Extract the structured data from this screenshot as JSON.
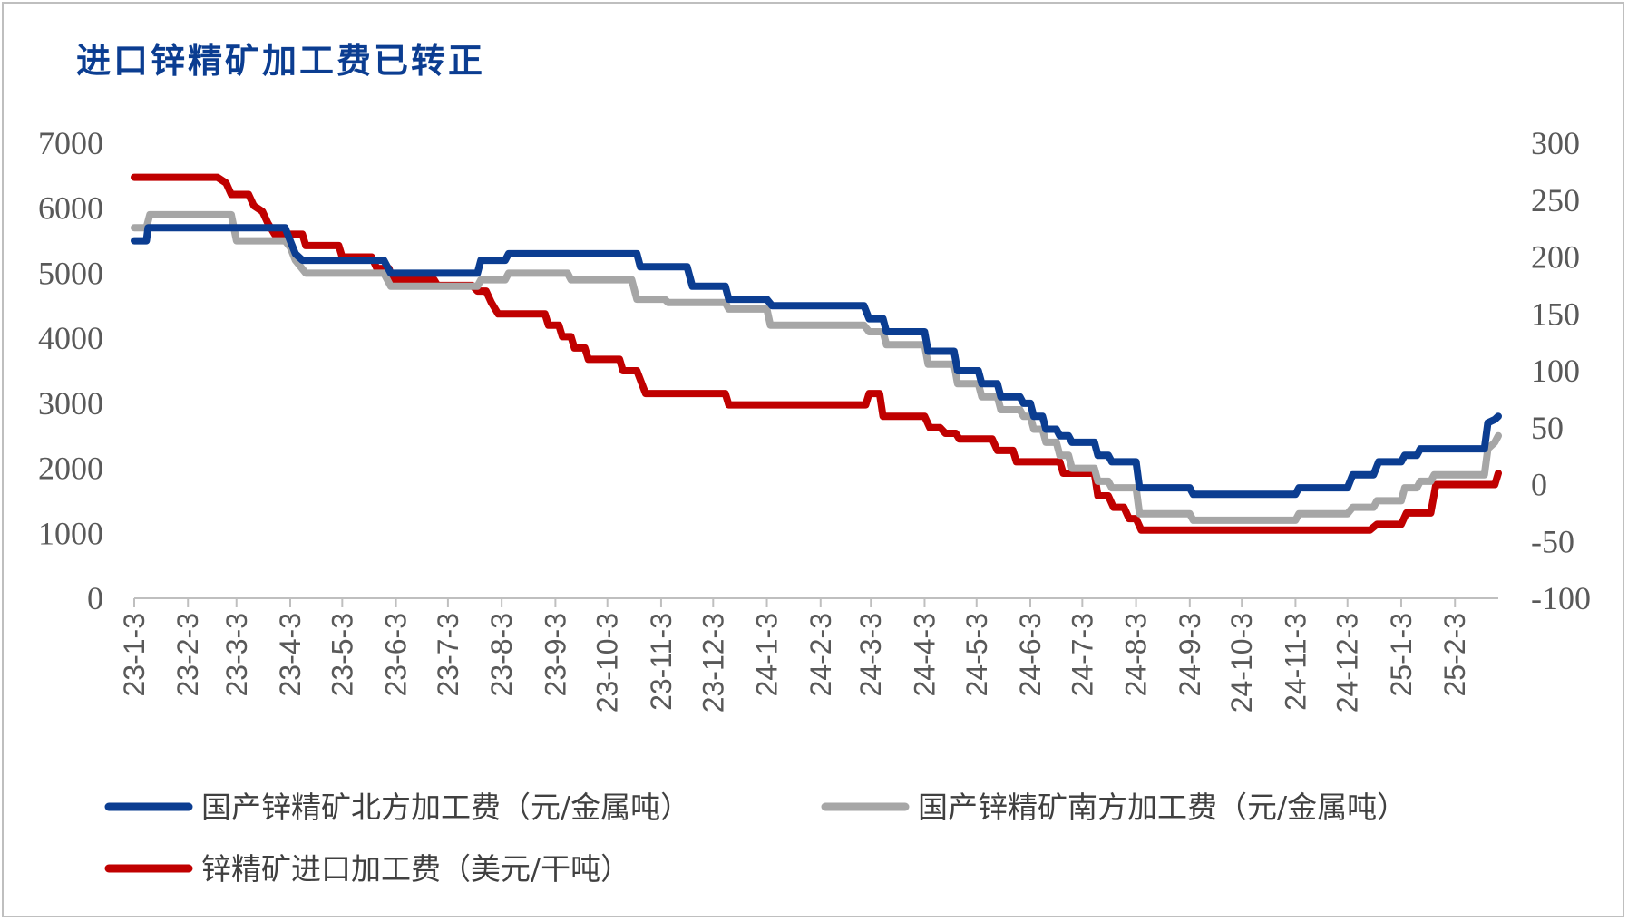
{
  "chart_data": {
    "type": "line",
    "title": "进口锌精矿加工费已转正",
    "y_left_ticks": [
      "7000",
      "6000",
      "5000",
      "4000",
      "3000",
      "2000",
      "1000",
      "0"
    ],
    "y_right_ticks": [
      "300",
      "250",
      "200",
      "150",
      "100",
      "50",
      "0",
      "-50",
      "-100"
    ],
    "y_left_range": [
      0,
      7000
    ],
    "y_right_range": [
      -100,
      300
    ],
    "x_ticks": [
      "23-1-3",
      "23-2-3",
      "23-3-3",
      "23-4-3",
      "23-5-3",
      "23-6-3",
      "23-7-3",
      "23-8-3",
      "23-9-3",
      "23-10-3",
      "23-11-3",
      "23-12-3",
      "24-1-3",
      "24-2-3",
      "24-3-3",
      "24-4-3",
      "24-5-3",
      "24-6-3",
      "24-7-3",
      "24-8-3",
      "24-9-3",
      "24-10-3",
      "24-11-3",
      "24-12-3",
      "25-1-3",
      "25-2-3"
    ],
    "x_range": [
      "2023-01-03",
      "2025-02-28"
    ],
    "series": [
      {
        "name": "国产锌精矿北方加工费（元/金属吨）",
        "axis": "left",
        "color": "#0b3d91",
        "points": [
          [
            "2023-01-03",
            5500
          ],
          [
            "2023-01-10",
            5500
          ],
          [
            "2023-01-11",
            5700
          ],
          [
            "2023-03-25",
            5700
          ],
          [
            "2023-03-31",
            5700
          ],
          [
            "2023-04-03",
            5500
          ],
          [
            "2023-04-06",
            5300
          ],
          [
            "2023-04-10",
            5200
          ],
          [
            "2023-05-27",
            5200
          ],
          [
            "2023-05-31",
            5000
          ],
          [
            "2023-07-20",
            5000
          ],
          [
            "2023-07-22",
            5200
          ],
          [
            "2023-08-05",
            5200
          ],
          [
            "2023-08-07",
            5300
          ],
          [
            "2023-10-20",
            5300
          ],
          [
            "2023-10-22",
            5100
          ],
          [
            "2023-11-18",
            5100
          ],
          [
            "2023-11-21",
            4800
          ],
          [
            "2023-12-10",
            4800
          ],
          [
            "2023-12-12",
            4600
          ],
          [
            "2024-01-03",
            4600
          ],
          [
            "2024-01-06",
            4500
          ],
          [
            "2024-02-28",
            4500
          ],
          [
            "2024-03-02",
            4300
          ],
          [
            "2024-03-10",
            4300
          ],
          [
            "2024-03-12",
            4100
          ],
          [
            "2024-04-03",
            4100
          ],
          [
            "2024-04-05",
            3800
          ],
          [
            "2024-04-20",
            3800
          ],
          [
            "2024-04-22",
            3500
          ],
          [
            "2024-05-04",
            3500
          ],
          [
            "2024-05-06",
            3300
          ],
          [
            "2024-05-15",
            3300
          ],
          [
            "2024-05-17",
            3100
          ],
          [
            "2024-05-28",
            3100
          ],
          [
            "2024-05-30",
            3000
          ],
          [
            "2024-06-03",
            3000
          ],
          [
            "2024-06-05",
            2800
          ],
          [
            "2024-06-10",
            2800
          ],
          [
            "2024-06-12",
            2600
          ],
          [
            "2024-06-18",
            2600
          ],
          [
            "2024-06-20",
            2500
          ],
          [
            "2024-06-25",
            2500
          ],
          [
            "2024-06-27",
            2400
          ],
          [
            "2024-07-10",
            2400
          ],
          [
            "2024-07-12",
            2200
          ],
          [
            "2024-07-18",
            2200
          ],
          [
            "2024-07-20",
            2100
          ],
          [
            "2024-08-03",
            2100
          ],
          [
            "2024-08-05",
            1700
          ],
          [
            "2024-09-03",
            1700
          ],
          [
            "2024-09-05",
            1600
          ],
          [
            "2024-11-03",
            1600
          ],
          [
            "2024-11-05",
            1700
          ],
          [
            "2024-12-03",
            1700
          ],
          [
            "2024-12-06",
            1900
          ],
          [
            "2024-12-18",
            1900
          ],
          [
            "2024-12-21",
            2100
          ],
          [
            "2025-01-03",
            2100
          ],
          [
            "2025-01-05",
            2200
          ],
          [
            "2025-01-12",
            2200
          ],
          [
            "2025-01-14",
            2300
          ],
          [
            "2025-02-18",
            2300
          ],
          [
            "2025-02-20",
            2300
          ],
          [
            "2025-02-22",
            2700
          ],
          [
            "2025-02-26",
            2750
          ],
          [
            "2025-02-28",
            2800
          ]
        ]
      },
      {
        "name": "国产锌精矿南方加工费（元/金属吨）",
        "axis": "left",
        "color": "#a6a6a6",
        "points": [
          [
            "2023-01-03",
            5700
          ],
          [
            "2023-01-10",
            5700
          ],
          [
            "2023-01-12",
            5900
          ],
          [
            "2023-02-28",
            5900
          ],
          [
            "2023-03-03",
            5500
          ],
          [
            "2023-03-31",
            5500
          ],
          [
            "2023-04-03",
            5400
          ],
          [
            "2023-04-06",
            5200
          ],
          [
            "2023-04-12",
            5000
          ],
          [
            "2023-05-27",
            5000
          ],
          [
            "2023-05-31",
            4800
          ],
          [
            "2023-07-20",
            4800
          ],
          [
            "2023-07-22",
            4900
          ],
          [
            "2023-08-05",
            4900
          ],
          [
            "2023-08-07",
            5000
          ],
          [
            "2023-09-10",
            5000
          ],
          [
            "2023-09-12",
            4900
          ],
          [
            "2023-10-17",
            4900
          ],
          [
            "2023-10-20",
            4600
          ],
          [
            "2023-11-05",
            4600
          ],
          [
            "2023-11-07",
            4550
          ],
          [
            "2023-12-10",
            4550
          ],
          [
            "2023-12-12",
            4450
          ],
          [
            "2024-01-03",
            4450
          ],
          [
            "2024-01-05",
            4200
          ],
          [
            "2024-02-28",
            4200
          ],
          [
            "2024-03-02",
            4100
          ],
          [
            "2024-03-10",
            4100
          ],
          [
            "2024-03-12",
            3900
          ],
          [
            "2024-04-03",
            3900
          ],
          [
            "2024-04-05",
            3600
          ],
          [
            "2024-04-20",
            3600
          ],
          [
            "2024-04-22",
            3300
          ],
          [
            "2024-05-04",
            3300
          ],
          [
            "2024-05-06",
            3100
          ],
          [
            "2024-05-15",
            3100
          ],
          [
            "2024-05-17",
            2900
          ],
          [
            "2024-05-28",
            2900
          ],
          [
            "2024-05-30",
            2800
          ],
          [
            "2024-06-03",
            2800
          ],
          [
            "2024-06-05",
            2600
          ],
          [
            "2024-06-10",
            2600
          ],
          [
            "2024-06-12",
            2400
          ],
          [
            "2024-06-18",
            2400
          ],
          [
            "2024-06-20",
            2200
          ],
          [
            "2024-06-25",
            2200
          ],
          [
            "2024-06-27",
            2000
          ],
          [
            "2024-07-10",
            2000
          ],
          [
            "2024-07-12",
            1800
          ],
          [
            "2024-07-18",
            1800
          ],
          [
            "2024-07-20",
            1700
          ],
          [
            "2024-08-03",
            1700
          ],
          [
            "2024-08-05",
            1300
          ],
          [
            "2024-09-03",
            1300
          ],
          [
            "2024-09-05",
            1200
          ],
          [
            "2024-11-03",
            1200
          ],
          [
            "2024-11-05",
            1300
          ],
          [
            "2024-12-03",
            1300
          ],
          [
            "2024-12-06",
            1400
          ],
          [
            "2024-12-18",
            1400
          ],
          [
            "2024-12-20",
            1500
          ],
          [
            "2025-01-03",
            1500
          ],
          [
            "2025-01-05",
            1700
          ],
          [
            "2025-01-12",
            1700
          ],
          [
            "2025-01-14",
            1800
          ],
          [
            "2025-01-20",
            1800
          ],
          [
            "2025-01-22",
            1900
          ],
          [
            "2025-02-20",
            1900
          ],
          [
            "2025-02-22",
            2300
          ],
          [
            "2025-02-26",
            2400
          ],
          [
            "2025-02-28",
            2500
          ]
        ]
      },
      {
        "name": "锌精矿进口加工费（美元/干吨）",
        "axis": "right",
        "color": "#c00000",
        "points": [
          [
            "2023-01-03",
            270
          ],
          [
            "2023-02-20",
            270
          ],
          [
            "2023-02-25",
            265
          ],
          [
            "2023-02-28",
            255
          ],
          [
            "2023-03-10",
            255
          ],
          [
            "2023-03-13",
            245
          ],
          [
            "2023-03-18",
            240
          ],
          [
            "2023-03-21",
            230
          ],
          [
            "2023-03-25",
            220
          ],
          [
            "2023-04-10",
            220
          ],
          [
            "2023-04-12",
            210
          ],
          [
            "2023-05-01",
            210
          ],
          [
            "2023-05-03",
            200
          ],
          [
            "2023-05-20",
            200
          ],
          [
            "2023-05-23",
            190
          ],
          [
            "2023-05-30",
            190
          ],
          [
            "2023-06-01",
            180
          ],
          [
            "2023-06-25",
            180
          ],
          [
            "2023-06-27",
            175
          ],
          [
            "2023-07-17",
            175
          ],
          [
            "2023-07-20",
            170
          ],
          [
            "2023-07-25",
            170
          ],
          [
            "2023-07-28",
            160
          ],
          [
            "2023-08-01",
            150
          ],
          [
            "2023-08-28",
            150
          ],
          [
            "2023-08-30",
            140
          ],
          [
            "2023-09-05",
            140
          ],
          [
            "2023-09-07",
            130
          ],
          [
            "2023-09-12",
            130
          ],
          [
            "2023-09-14",
            120
          ],
          [
            "2023-09-20",
            120
          ],
          [
            "2023-09-22",
            110
          ],
          [
            "2023-10-10",
            110
          ],
          [
            "2023-10-12",
            100
          ],
          [
            "2023-10-20",
            100
          ],
          [
            "2023-10-25",
            80
          ],
          [
            "2023-12-10",
            80
          ],
          [
            "2023-12-12",
            70
          ],
          [
            "2024-02-29",
            70
          ],
          [
            "2024-03-02",
            80
          ],
          [
            "2024-03-08",
            80
          ],
          [
            "2024-03-10",
            60
          ],
          [
            "2024-04-03",
            60
          ],
          [
            "2024-04-06",
            50
          ],
          [
            "2024-04-12",
            50
          ],
          [
            "2024-04-15",
            45
          ],
          [
            "2024-04-21",
            45
          ],
          [
            "2024-04-23",
            40
          ],
          [
            "2024-05-12",
            40
          ],
          [
            "2024-05-15",
            30
          ],
          [
            "2024-05-24",
            30
          ],
          [
            "2024-05-26",
            20
          ],
          [
            "2024-06-20",
            20
          ],
          [
            "2024-06-22",
            10
          ],
          [
            "2024-07-10",
            10
          ],
          [
            "2024-07-12",
            -10
          ],
          [
            "2024-07-18",
            -10
          ],
          [
            "2024-07-21",
            -20
          ],
          [
            "2024-07-27",
            -20
          ],
          [
            "2024-07-30",
            -30
          ],
          [
            "2024-08-03",
            -30
          ],
          [
            "2024-08-06",
            -40
          ],
          [
            "2024-12-16",
            -40
          ],
          [
            "2024-12-20",
            -35
          ],
          [
            "2025-01-03",
            -35
          ],
          [
            "2025-01-06",
            -25
          ],
          [
            "2025-01-20",
            -25
          ],
          [
            "2025-01-23",
            0
          ],
          [
            "2025-02-22",
            0
          ],
          [
            "2025-02-26",
            0
          ],
          [
            "2025-02-28",
            10
          ]
        ]
      }
    ],
    "legend_position": "bottom",
    "grid": false
  }
}
